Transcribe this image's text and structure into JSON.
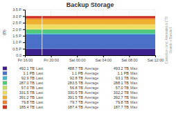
{
  "chart_data": {
    "type": "area",
    "stacked": true,
    "grid": true,
    "title": "Backup Storage",
    "ylabel": "(B)",
    "side_label": [
      "Cartuchos como Alternativa à LTO",
      "Usando o Bacula 6"
    ],
    "xlim": [
      0,
      99
    ],
    "xticks": [
      {
        "value": 0,
        "label": "Fri 16:00"
      },
      {
        "value": 19.8,
        "label": "Fri 20:00"
      },
      {
        "value": 39.6,
        "label": "Sat 00:00"
      },
      {
        "value": 59.4,
        "label": "Sat 04:00"
      },
      {
        "value": 79.2,
        "label": "Sat 08:00"
      },
      {
        "value": 99,
        "label": "Sat 12:00"
      }
    ],
    "ylim": [
      0,
      3.5
    ],
    "yticks": [
      {
        "value": 0.0,
        "label": "0.0"
      },
      {
        "value": 0.5,
        "label": "0.5 P"
      },
      {
        "value": 1.0,
        "label": "1.0 P"
      },
      {
        "value": 1.5,
        "label": "1.5 P"
      },
      {
        "value": 2.0,
        "label": "2.0 P"
      },
      {
        "value": 2.5,
        "label": "2.5 P"
      },
      {
        "value": 3.0,
        "label": "3.0 P"
      },
      {
        "value": 3.5,
        "label": "3.5 P"
      }
    ],
    "spike": {
      "x": 13,
      "color": "#ffffff"
    },
    "legend_columns": [
      "Last",
      "Average",
      "Max"
    ],
    "x": [
      0,
      1,
      2,
      3,
      4,
      5,
      6,
      7,
      8,
      9,
      10,
      11,
      12,
      13,
      14,
      15,
      16,
      17,
      18,
      19,
      20,
      21,
      22,
      23,
      24,
      25,
      26,
      27,
      28,
      29,
      30,
      31,
      32,
      33,
      34,
      35,
      36,
      37,
      38,
      39,
      40,
      41,
      42,
      43,
      44,
      45,
      46,
      47,
      48,
      49,
      50,
      51,
      52,
      53,
      54,
      55,
      56,
      57,
      58,
      59,
      60,
      61,
      62,
      63,
      64,
      65,
      66,
      67,
      68,
      69,
      70,
      71,
      72,
      73,
      74,
      75,
      76,
      77,
      78,
      79,
      80,
      81,
      82,
      83,
      84,
      85,
      86,
      87,
      88,
      89,
      90,
      91,
      92,
      93,
      94,
      95,
      96,
      97,
      98,
      99
    ],
    "series": [
      {
        "color": "#3b1f8c",
        "legend_values": [
          "492.1 TB",
          "488.7 TB",
          "493.2 TB"
        ],
        "values": [
          0.492,
          0.492,
          0.492,
          0.492,
          0.492,
          0.492,
          0.492,
          0.492,
          0.492,
          0.492,
          0.492,
          0.492,
          0.492,
          0.492,
          0.492,
          0.492,
          0.492,
          0.492,
          0.492,
          0.492,
          0.492,
          0.492,
          0.492,
          0.492,
          0.492,
          0.492,
          0.492,
          0.492,
          0.492,
          0.492,
          0.492,
          0.492,
          0.492,
          0.492,
          0.492,
          0.492,
          0.492,
          0.492,
          0.492,
          0.492,
          0.492,
          0.492,
          0.492,
          0.492,
          0.492,
          0.492,
          0.492,
          0.492,
          0.492,
          0.492,
          0.492,
          0.492,
          0.492,
          0.492,
          0.492,
          0.492,
          0.492,
          0.492,
          0.492,
          0.492,
          0.492,
          0.492,
          0.492,
          0.492,
          0.492,
          0.492,
          0.492,
          0.492,
          0.492,
          0.492,
          0.492,
          0.492,
          0.492,
          0.492,
          0.492,
          0.492,
          0.492,
          0.492,
          0.492,
          0.492,
          0.492,
          0.492,
          0.492,
          0.492,
          0.492,
          0.492,
          0.492,
          0.492,
          0.492,
          0.492,
          0.492,
          0.492,
          0.492,
          0.492,
          0.492,
          0.492,
          0.492,
          0.492,
          0.492,
          0.492
        ]
      },
      {
        "color": "#4a70c8",
        "legend_values": [
          "1.1 PB",
          "1.1 PB",
          "1.1 PB"
        ],
        "values": [
          1.1,
          1.1,
          1.1,
          1.1,
          1.1,
          1.1,
          1.1,
          1.1,
          1.1,
          1.1,
          1.1,
          1.1,
          1.1,
          1.1,
          1.1,
          1.1,
          1.1,
          1.1,
          1.1,
          1.1,
          1.1,
          1.1,
          1.1,
          1.1,
          1.1,
          1.1,
          1.1,
          1.1,
          1.1,
          1.1,
          1.1,
          1.1,
          1.1,
          1.1,
          1.1,
          1.1,
          1.1,
          1.1,
          1.1,
          1.1,
          1.1,
          1.1,
          1.1,
          1.1,
          1.1,
          1.1,
          1.1,
          1.1,
          1.1,
          1.1,
          1.1,
          1.1,
          1.1,
          1.1,
          1.1,
          1.1,
          1.1,
          1.1,
          1.1,
          1.1,
          1.1,
          1.1,
          1.1,
          1.1,
          1.1,
          1.1,
          1.1,
          1.1,
          1.1,
          1.1,
          1.1,
          1.1,
          1.1,
          1.1,
          1.1,
          1.1,
          1.1,
          1.1,
          1.1,
          1.1,
          1.1,
          1.1,
          1.1,
          1.1,
          1.1,
          1.1,
          1.1,
          1.1,
          1.1,
          1.1,
          1.1,
          1.1,
          1.1,
          1.1,
          1.1,
          1.1,
          1.1,
          1.1,
          1.1,
          1.1
        ]
      },
      {
        "color": "#48b8d0",
        "legend_values": [
          "92.9 TB",
          "92.8 TB",
          "93.1 TB"
        ],
        "values": [
          0.093,
          0.093,
          0.093,
          0.093,
          0.093,
          0.093,
          0.093,
          0.093,
          0.093,
          0.093,
          0.093,
          0.093,
          0.093,
          0.093,
          0.093,
          0.093,
          0.093,
          0.093,
          0.093,
          0.093,
          0.093,
          0.093,
          0.093,
          0.093,
          0.093,
          0.093,
          0.093,
          0.093,
          0.093,
          0.093,
          0.093,
          0.093,
          0.093,
          0.093,
          0.093,
          0.093,
          0.093,
          0.093,
          0.093,
          0.093,
          0.093,
          0.093,
          0.093,
          0.093,
          0.093,
          0.093,
          0.093,
          0.093,
          0.093,
          0.093,
          0.093,
          0.093,
          0.093,
          0.093,
          0.093,
          0.093,
          0.093,
          0.093,
          0.093,
          0.093,
          0.093,
          0.093,
          0.093,
          0.093,
          0.093,
          0.093,
          0.093,
          0.093,
          0.093,
          0.093,
          0.093,
          0.093,
          0.093,
          0.093,
          0.093,
          0.093,
          0.093,
          0.093,
          0.093,
          0.093,
          0.093,
          0.093,
          0.093,
          0.093,
          0.093,
          0.093,
          0.093,
          0.093,
          0.093,
          0.093,
          0.093,
          0.093,
          0.093,
          0.093,
          0.093,
          0.093,
          0.093,
          0.093,
          0.093,
          0.093
        ]
      },
      {
        "color": "#52c87a",
        "legend_values": [
          "287.0 TB",
          "283.5 TB",
          "288.1 TB"
        ],
        "values": [
          0.287,
          0.287,
          0.287,
          0.287,
          0.287,
          0.287,
          0.287,
          0.287,
          0.287,
          0.287,
          0.287,
          0.287,
          0.287,
          0.287,
          0.287,
          0.287,
          0.287,
          0.287,
          0.287,
          0.287,
          0.287,
          0.287,
          0.287,
          0.287,
          0.287,
          0.287,
          0.287,
          0.287,
          0.287,
          0.287,
          0.287,
          0.287,
          0.287,
          0.287,
          0.287,
          0.287,
          0.287,
          0.287,
          0.287,
          0.287,
          0.287,
          0.287,
          0.287,
          0.287,
          0.287,
          0.287,
          0.287,
          0.287,
          0.287,
          0.287,
          0.287,
          0.287,
          0.287,
          0.287,
          0.287,
          0.287,
          0.287,
          0.287,
          0.287,
          0.287,
          0.287,
          0.287,
          0.287,
          0.287,
          0.287,
          0.287,
          0.287,
          0.287,
          0.287,
          0.287,
          0.287,
          0.287,
          0.287,
          0.287,
          0.287,
          0.287,
          0.287,
          0.287,
          0.287,
          0.287,
          0.287,
          0.287,
          0.287,
          0.287,
          0.287,
          0.287,
          0.287,
          0.287,
          0.287,
          0.287,
          0.287,
          0.287,
          0.287,
          0.287,
          0.287,
          0.287,
          0.287,
          0.287,
          0.287,
          0.287
        ]
      },
      {
        "color": "#c5e060",
        "legend_values": [
          "57.0 TB",
          "56.8 TB",
          "57.0 TB"
        ],
        "values": [
          0.057,
          0.057,
          0.057,
          0.057,
          0.057,
          0.057,
          0.057,
          0.057,
          0.057,
          0.057,
          0.057,
          0.057,
          0.057,
          0.057,
          0.057,
          0.057,
          0.057,
          0.057,
          0.057,
          0.057,
          0.057,
          0.057,
          0.057,
          0.057,
          0.057,
          0.057,
          0.057,
          0.057,
          0.057,
          0.057,
          0.057,
          0.057,
          0.057,
          0.057,
          0.057,
          0.057,
          0.057,
          0.057,
          0.057,
          0.057,
          0.057,
          0.057,
          0.057,
          0.057,
          0.057,
          0.057,
          0.057,
          0.057,
          0.057,
          0.057,
          0.057,
          0.057,
          0.057,
          0.057,
          0.057,
          0.057,
          0.057,
          0.057,
          0.057,
          0.057,
          0.057,
          0.057,
          0.057,
          0.057,
          0.057,
          0.057,
          0.057,
          0.057,
          0.057,
          0.057,
          0.057,
          0.057,
          0.057,
          0.057,
          0.057,
          0.057,
          0.057,
          0.057,
          0.057,
          0.057,
          0.057,
          0.057,
          0.057,
          0.057,
          0.057,
          0.057,
          0.057,
          0.057,
          0.057,
          0.057,
          0.057,
          0.057,
          0.057,
          0.057,
          0.057,
          0.057,
          0.057,
          0.057,
          0.057,
          0.057
        ]
      },
      {
        "color": "#f0dc60",
        "legend_values": [
          "331.5 TB",
          "330.5 TB",
          "332.2 TB"
        ],
        "values": [
          0.332,
          0.332,
          0.332,
          0.332,
          0.332,
          0.332,
          0.332,
          0.332,
          0.332,
          0.332,
          0.332,
          0.332,
          0.332,
          0.332,
          0.332,
          0.332,
          0.332,
          0.332,
          0.332,
          0.332,
          0.332,
          0.332,
          0.332,
          0.332,
          0.332,
          0.332,
          0.332,
          0.332,
          0.332,
          0.332,
          0.332,
          0.332,
          0.332,
          0.332,
          0.332,
          0.332,
          0.332,
          0.332,
          0.332,
          0.332,
          0.332,
          0.332,
          0.332,
          0.332,
          0.332,
          0.332,
          0.332,
          0.332,
          0.332,
          0.332,
          0.332,
          0.332,
          0.332,
          0.332,
          0.332,
          0.332,
          0.332,
          0.332,
          0.332,
          0.332,
          0.332,
          0.332,
          0.332,
          0.332,
          0.332,
          0.332,
          0.332,
          0.332,
          0.332,
          0.332,
          0.332,
          0.332,
          0.332,
          0.332,
          0.332,
          0.332,
          0.332,
          0.332,
          0.332,
          0.332,
          0.332,
          0.332,
          0.332,
          0.332,
          0.332,
          0.332,
          0.332,
          0.332,
          0.332,
          0.332,
          0.332,
          0.332,
          0.332,
          0.332,
          0.332,
          0.332,
          0.332,
          0.332,
          0.332,
          0.332
        ]
      },
      {
        "color": "#f0b030",
        "legend_values": [
          "391.2 TB",
          "391.5 TB",
          "392.7 TB"
        ],
        "values": [
          0.391,
          0.391,
          0.391,
          0.391,
          0.391,
          0.391,
          0.391,
          0.391,
          0.391,
          0.391,
          0.391,
          0.391,
          0.391,
          0.391,
          0.391,
          0.391,
          0.391,
          0.391,
          0.391,
          0.391,
          0.391,
          0.391,
          0.391,
          0.391,
          0.391,
          0.391,
          0.391,
          0.391,
          0.391,
          0.391,
          0.391,
          0.391,
          0.391,
          0.391,
          0.391,
          0.391,
          0.391,
          0.391,
          0.391,
          0.391,
          0.391,
          0.391,
          0.391,
          0.391,
          0.391,
          0.391,
          0.391,
          0.391,
          0.391,
          0.391,
          0.391,
          0.391,
          0.391,
          0.391,
          0.391,
          0.391,
          0.391,
          0.391,
          0.391,
          0.391,
          0.391,
          0.391,
          0.391,
          0.391,
          0.391,
          0.391,
          0.391,
          0.391,
          0.391,
          0.391,
          0.391,
          0.391,
          0.391,
          0.391,
          0.391,
          0.391,
          0.391,
          0.391,
          0.391,
          0.391,
          0.391,
          0.391,
          0.391,
          0.391,
          0.391,
          0.391,
          0.391,
          0.391,
          0.391,
          0.391,
          0.391,
          0.391,
          0.391,
          0.391,
          0.391,
          0.391,
          0.391,
          0.391,
          0.391,
          0.391
        ]
      },
      {
        "color": "#f08030",
        "legend_values": [
          "79.8 TB",
          "79.7 TB",
          "79.8 TB"
        ],
        "values": [
          0.079,
          0.079,
          0.079,
          0.079,
          0.079,
          0.079,
          0.079,
          0.079,
          0.079,
          0.079,
          0.079,
          0.079,
          0.079,
          0.079,
          0.079,
          0.079,
          0.079,
          0.079,
          0.079,
          0.079,
          0.079,
          0.079,
          0.079,
          0.079,
          0.079,
          0.079,
          0.079,
          0.079,
          0.079,
          0.079,
          0.079,
          0.079,
          0.079,
          0.079,
          0.079,
          0.079,
          0.079,
          0.079,
          0.079,
          0.079,
          0.079,
          0.079,
          0.079,
          0.079,
          0.079,
          0.079,
          0.079,
          0.079,
          0.079,
          0.079,
          0.079,
          0.079,
          0.079,
          0.079,
          0.079,
          0.079,
          0.079,
          0.079,
          0.079,
          0.079,
          0.079,
          0.079,
          0.079,
          0.079,
          0.079,
          0.079,
          0.079,
          0.079,
          0.079,
          0.079,
          0.079,
          0.079,
          0.079,
          0.079,
          0.079,
          0.079,
          0.079,
          0.079,
          0.079,
          0.079,
          0.079,
          0.079,
          0.079,
          0.079,
          0.079,
          0.079,
          0.079,
          0.079,
          0.079,
          0.079,
          0.079,
          0.079,
          0.079,
          0.079,
          0.079,
          0.079,
          0.079,
          0.079,
          0.079,
          0.079
        ]
      },
      {
        "color": "#d03020",
        "legend_values": [
          "185.4 TB",
          "187.4 TB",
          "187.7 TB"
        ],
        "values": [
          0.185,
          0.185,
          0.185,
          0.185,
          0.185,
          0.185,
          0.185,
          0.185,
          0.185,
          0.185,
          0.185,
          0.185,
          0.185,
          0.185,
          0.185,
          0.185,
          0.185,
          0.185,
          0.185,
          0.185,
          0.185,
          0.185,
          0.185,
          0.185,
          0.185,
          0.185,
          0.185,
          0.185,
          0.185,
          0.185,
          0.185,
          0.185,
          0.185,
          0.185,
          0.185,
          0.185,
          0.185,
          0.185,
          0.185,
          0.185,
          0.185,
          0.185,
          0.185,
          0.185,
          0.185,
          0.185,
          0.185,
          0.185,
          0.185,
          0.185,
          0.185,
          0.185,
          0.185,
          0.185,
          0.185,
          0.185,
          0.185,
          0.185,
          0.185,
          0.185,
          0.185,
          0.185,
          0.185,
          0.185,
          0.185,
          0.185,
          0.185,
          0.185,
          0.185,
          0.185,
          0.185,
          0.185,
          0.185,
          0.185,
          0.185,
          0.185,
          0.185,
          0.185,
          0.185,
          0.185,
          0.185,
          0.185,
          0.185,
          0.185,
          0.185,
          0.185,
          0.185,
          0.185,
          0.185,
          0.185,
          0.185,
          0.185,
          0.185,
          0.185,
          0.185,
          0.185,
          0.185,
          0.185,
          0.185,
          0.185
        ]
      }
    ]
  }
}
